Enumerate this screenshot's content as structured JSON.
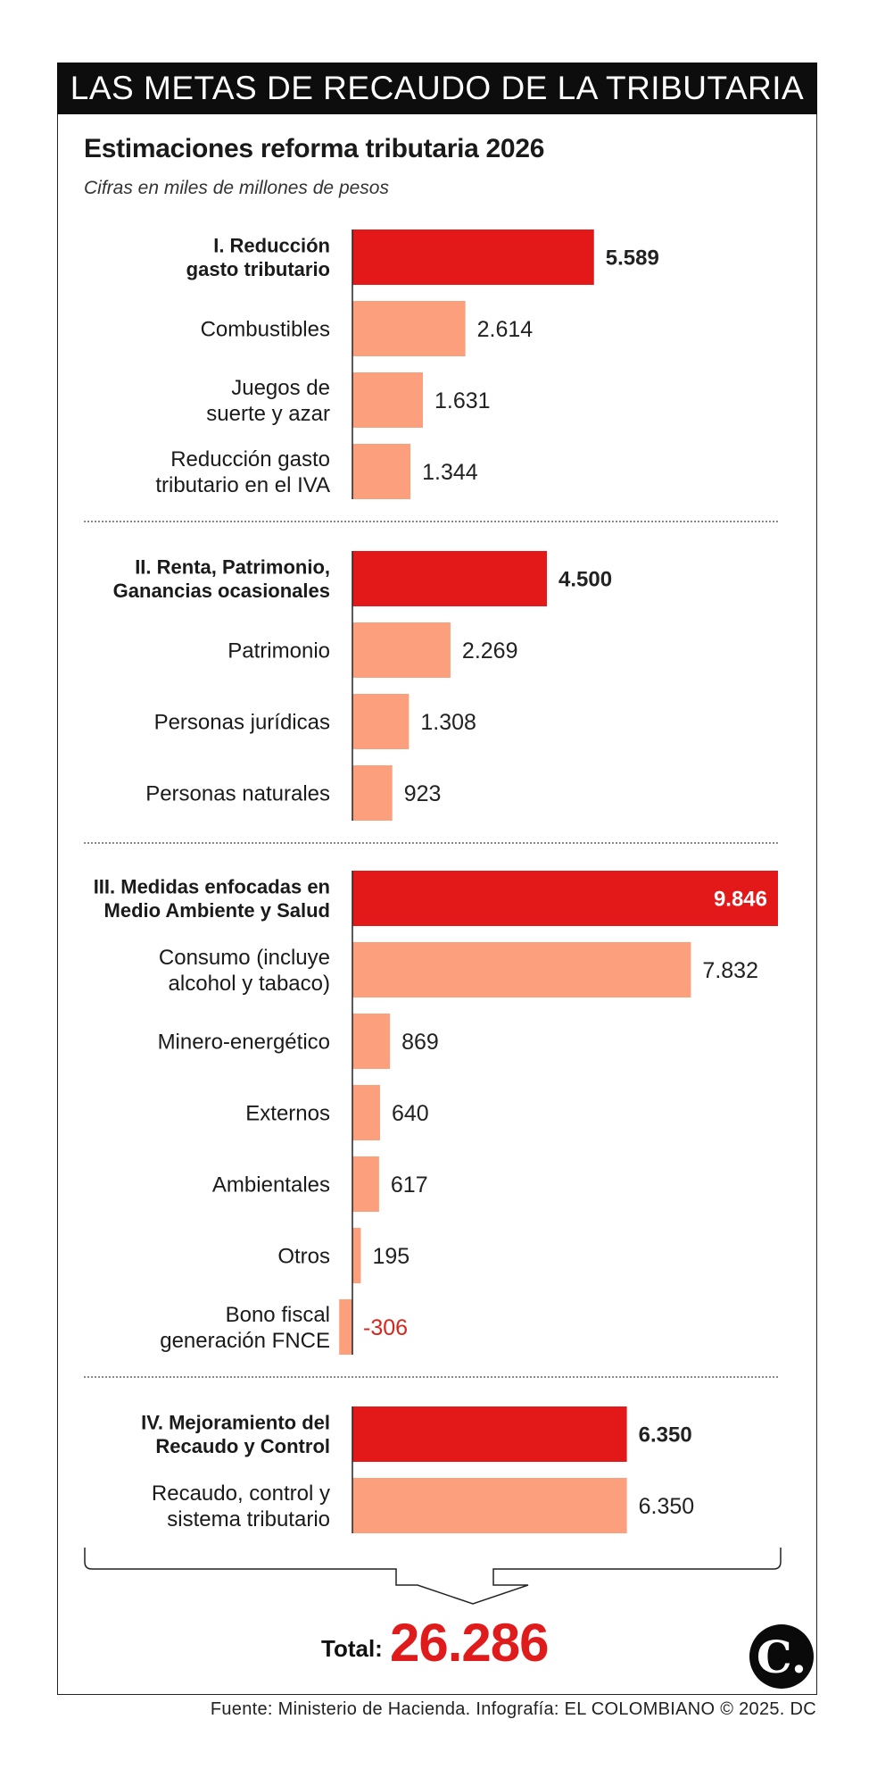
{
  "header": {
    "title": "LAS METAS DE RECAUDO DE LA TRIBUTARIA"
  },
  "subtitle": "Estimaciones reforma tributaria 2026",
  "units": "Cifras en miles de millones de pesos",
  "colors": {
    "primary_bar": "#e31818",
    "secondary_bar": "#fb9f7d",
    "negative_text": "#d9261c",
    "header_bg": "#0d0d0d"
  },
  "chart_data": {
    "type": "bar",
    "orientation": "horizontal",
    "xlim": [
      -306,
      9846
    ],
    "groups": [
      {
        "label": "I. Reducción gasto tributario",
        "label_lines": [
          "I. Reducción",
          "gasto tributario"
        ],
        "value": 5589,
        "value_label": "5.589",
        "items": [
          {
            "label_lines": [
              "Combustibles"
            ],
            "value": 2614,
            "value_label": "2.614"
          },
          {
            "label_lines": [
              "Juegos de",
              "suerte y azar"
            ],
            "value": 1631,
            "value_label": "1.631"
          },
          {
            "label_lines": [
              "Reducción gasto",
              "tributario en el IVA"
            ],
            "value": 1344,
            "value_label": "1.344"
          }
        ]
      },
      {
        "label": "II. Renta, Patrimonio, Ganancias ocasionales",
        "label_lines": [
          "II. Renta, Patrimonio,",
          "Ganancias ocasionales"
        ],
        "value": 4500,
        "value_label": "4.500",
        "items": [
          {
            "label_lines": [
              "Patrimonio"
            ],
            "value": 2269,
            "value_label": "2.269"
          },
          {
            "label_lines": [
              "Personas jurídicas"
            ],
            "value": 1308,
            "value_label": "1.308"
          },
          {
            "label_lines": [
              "Personas naturales"
            ],
            "value": 923,
            "value_label": "923"
          }
        ]
      },
      {
        "label": "III. Medidas enfocadas en Medio Ambiente y Salud",
        "label_lines": [
          "III. Medidas enfocadas en",
          "Medio Ambiente y Salud"
        ],
        "value": 9846,
        "value_label": "9.846",
        "items": [
          {
            "label_lines": [
              "Consumo (incluye",
              "alcohol y tabaco)"
            ],
            "value": 7832,
            "value_label": "7.832"
          },
          {
            "label_lines": [
              "Minero-energético"
            ],
            "value": 869,
            "value_label": "869"
          },
          {
            "label_lines": [
              "Externos"
            ],
            "value": 640,
            "value_label": "640"
          },
          {
            "label_lines": [
              "Ambientales"
            ],
            "value": 617,
            "value_label": "617"
          },
          {
            "label_lines": [
              "Otros"
            ],
            "value": 195,
            "value_label": "195"
          },
          {
            "label_lines": [
              "Bono fiscal",
              "generación FNCE"
            ],
            "value": -306,
            "value_label": "-306"
          }
        ]
      },
      {
        "label": "IV. Mejoramiento del Recaudo y Control",
        "label_lines": [
          "IV. Mejoramiento del",
          "Recaudo y Control"
        ],
        "value": 6350,
        "value_label": "6.350",
        "items": [
          {
            "label_lines": [
              "Recaudo, control y",
              "sistema tributario"
            ],
            "value": 6350,
            "value_label": "6.350"
          }
        ]
      }
    ],
    "total": {
      "label": "Total:",
      "value": 26286,
      "value_label": "26.286"
    }
  },
  "logo_text": "C.",
  "source": "Fuente: Ministerio de Hacienda. Infografía: EL COLOMBIANO © 2025. DC"
}
